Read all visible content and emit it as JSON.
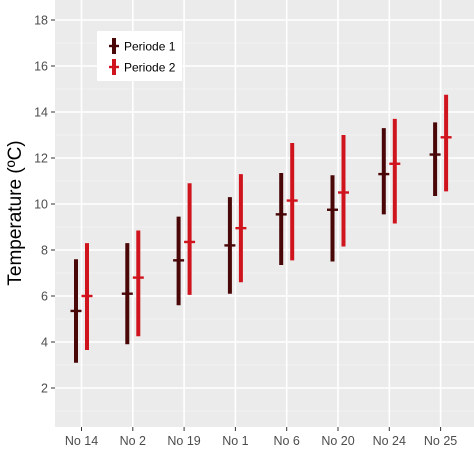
{
  "chart_data": {
    "type": "errorbar",
    "title": "",
    "xlabel": "",
    "ylabel": "Temperature  (ºC)",
    "categories": [
      "No 14",
      "No 2",
      "No 19",
      "No 1",
      "No 6",
      "No 20",
      "No 24",
      "No 25"
    ],
    "ylim": [
      0,
      19
    ],
    "yticks": [
      2,
      4,
      6,
      8,
      10,
      12,
      14,
      16,
      18
    ],
    "grid": true,
    "legend_position": "top-left",
    "series": [
      {
        "name": "Periode 1",
        "color": "#4a0707",
        "mean": [
          5.35,
          6.1,
          7.55,
          8.2,
          9.55,
          9.75,
          11.3,
          12.15
        ],
        "lower": [
          3.1,
          3.9,
          5.6,
          6.1,
          7.35,
          7.5,
          9.55,
          10.35
        ],
        "upper": [
          7.6,
          8.3,
          9.45,
          10.3,
          11.35,
          11.25,
          13.3,
          13.55
        ]
      },
      {
        "name": "Periode 2",
        "color": "#d0141e",
        "mean": [
          6.0,
          6.8,
          8.35,
          8.95,
          10.15,
          10.5,
          11.75,
          12.9
        ],
        "lower": [
          3.65,
          4.25,
          6.05,
          6.6,
          7.55,
          8.15,
          9.15,
          10.55
        ],
        "upper": [
          8.3,
          8.85,
          10.9,
          11.3,
          12.65,
          13.0,
          13.7,
          14.75
        ]
      }
    ]
  }
}
